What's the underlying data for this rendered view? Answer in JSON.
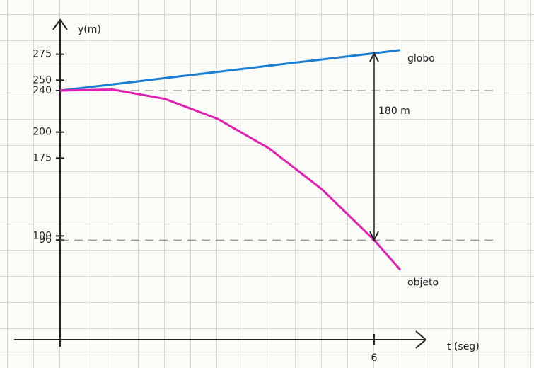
{
  "chart_data": {
    "type": "line",
    "y_label": "y(m)",
    "x_label": "t (seg)",
    "x": [
      0,
      1,
      2,
      3,
      4,
      5,
      6,
      6.5
    ],
    "series": [
      {
        "name": "globo",
        "color": "#1a7fd0",
        "values": [
          240,
          246,
          252,
          258,
          264,
          270,
          276,
          279
        ]
      },
      {
        "name": "objeto",
        "color": "#e020b0",
        "values": [
          240,
          241,
          232,
          213,
          184,
          145,
          96,
          67.25
        ]
      }
    ],
    "annotation": "180 m",
    "xlim": [
      0,
      7
    ],
    "xticks": [
      6
    ],
    "ylim": [
      0,
      300
    ],
    "yticks": [
      275,
      250,
      240,
      200,
      175,
      100,
      96
    ]
  }
}
